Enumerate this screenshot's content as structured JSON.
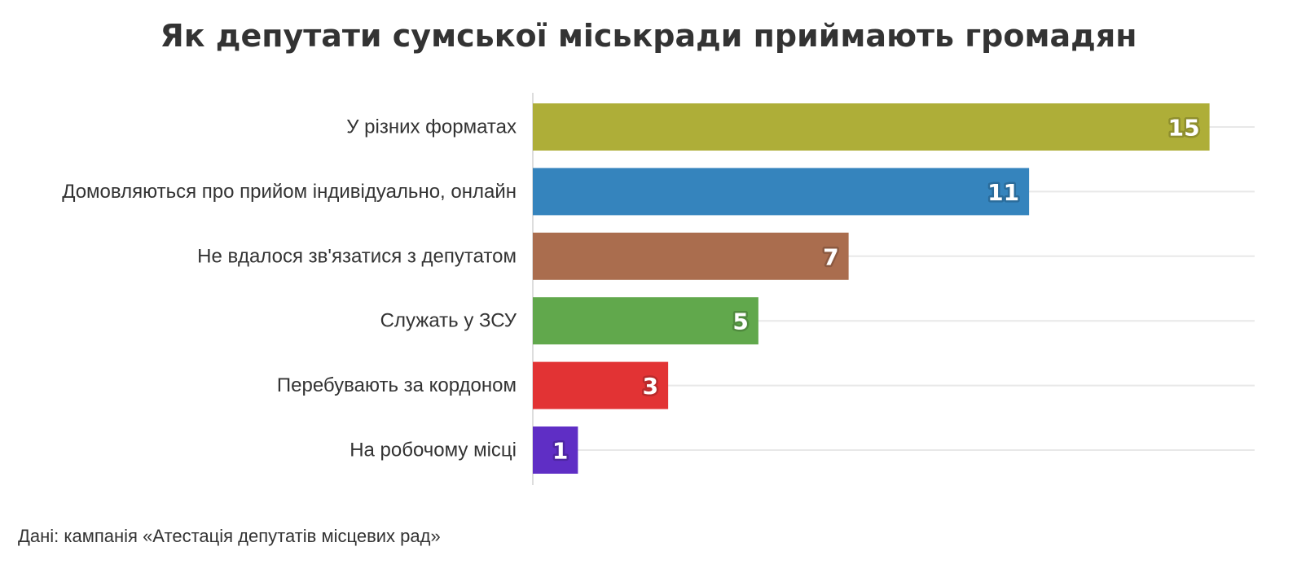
{
  "chart_data": {
    "type": "bar",
    "orientation": "horizontal",
    "title": "Як депутати сумської міськради приймають громадян",
    "categories": [
      "У різних форматах",
      "Домовляються про прийом індивідуально, онлайн",
      "Не вдалося зв'язатися з депутатом",
      "Служать у ЗСУ",
      "Перебувають за кордоном",
      "На робочому місці"
    ],
    "values": [
      15,
      11,
      7,
      5,
      3,
      1
    ],
    "colors": [
      "#AEAE38",
      "#3584BD",
      "#AA6D4E",
      "#61A84C",
      "#E23334",
      "#5F2EC5"
    ],
    "xlim": [
      0,
      16
    ],
    "grid": true,
    "data_labels": true
  },
  "source": "Дані: кампанія «Атестація депутатів місцевих рад»"
}
